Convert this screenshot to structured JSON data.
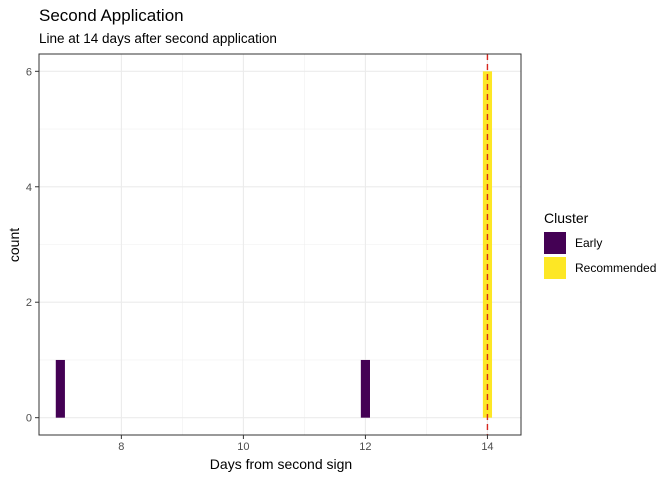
{
  "chart_data": {
    "type": "bar",
    "title": "Second Application",
    "subtitle": "Line at 14 days after second application",
    "xlabel": "Days from second sign",
    "ylabel": "count",
    "xlim": [
      6.65,
      14.55
    ],
    "ylim": [
      -0.3,
      6.3
    ],
    "x_ticks": [
      8,
      10,
      12,
      14
    ],
    "y_ticks": [
      0,
      2,
      4,
      6
    ],
    "grid": true,
    "bin_width": 0.15,
    "legend": {
      "title": "Cluster",
      "position": "right",
      "entries": [
        {
          "label": "Early",
          "color": "#440154"
        },
        {
          "label": "Recommended",
          "color": "#FDE725"
        }
      ]
    },
    "series": [
      {
        "name": "Early",
        "color": "#440154",
        "points": [
          {
            "x": 7,
            "count": 1
          },
          {
            "x": 12,
            "count": 1
          }
        ]
      },
      {
        "name": "Recommended",
        "color": "#FDE725",
        "points": [
          {
            "x": 14,
            "count": 6
          }
        ]
      }
    ],
    "reference_line": {
      "x": 14,
      "color": "#D7261E",
      "style": "dashed"
    }
  }
}
